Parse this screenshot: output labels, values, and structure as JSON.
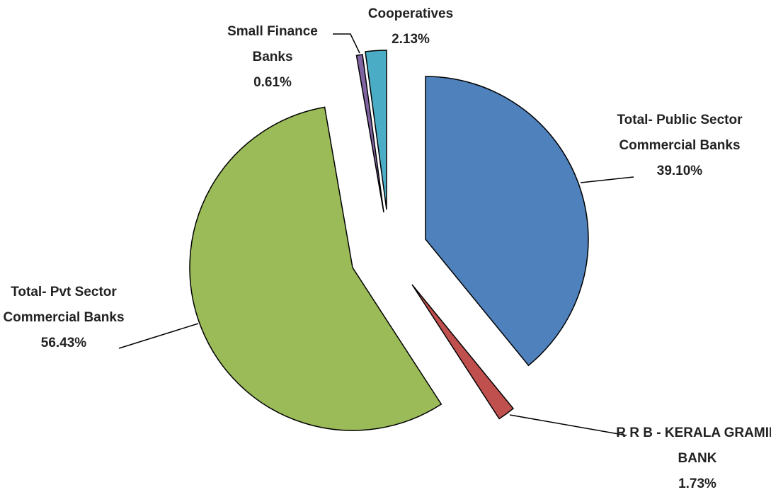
{
  "chart_data": {
    "type": "pie",
    "categories": [
      "Total- Public Sector Commercial Banks",
      "R R B - KERALA GRAMIN BANK",
      "Total- Pvt Sector Commercial Banks",
      "Small Finance Banks",
      "Cooperatives"
    ],
    "values": [
      39.1,
      1.73,
      56.43,
      0.61,
      2.13
    ],
    "value_labels": [
      "39.10%",
      "1.73%",
      "56.43%",
      "0.61%",
      "2.13%"
    ],
    "colors": [
      "#4f81bd",
      "#c0504d",
      "#9bbb59",
      "#8064a2",
      "#4bacc6"
    ]
  }
}
